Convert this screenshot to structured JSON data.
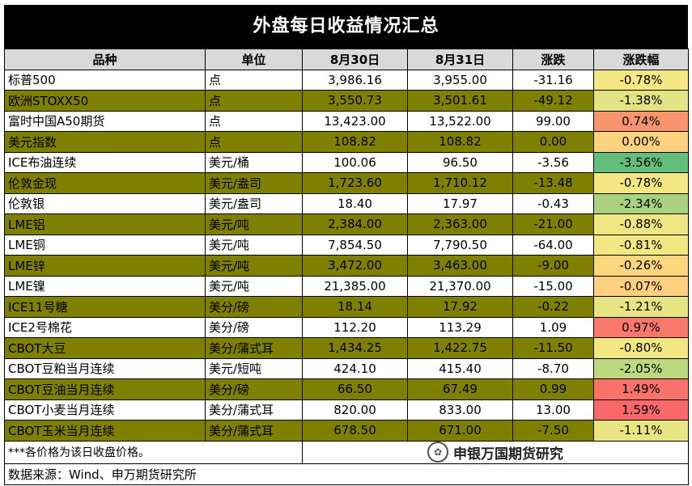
{
  "title": "外盘每日收益情况汇总",
  "headers": [
    "品种",
    "单位",
    "8月30日",
    "8月31日",
    "涨跌",
    "涨跌幅"
  ],
  "rows": [
    {
      "name": "标普500",
      "unit": "点",
      "d1": "3,986.16",
      "d2": "3,955.00",
      "chg": "-31.16",
      "pct": "-0.78%",
      "pct_color": "#f4e784",
      "band": "white"
    },
    {
      "name": "欧洲STOXX50",
      "unit": "点",
      "d1": "3,550.73",
      "d2": "3,501.61",
      "chg": "-49.12",
      "pct": "-1.38%",
      "pct_color": "#e2e384",
      "band": "olive"
    },
    {
      "name": "富时中国A50期货",
      "unit": "点",
      "d1": "13,423.00",
      "d2": "13,522.00",
      "chg": "99.00",
      "pct": "0.74%",
      "pct_color": "#f8956f",
      "band": "white"
    },
    {
      "name": "美元指数",
      "unit": "点",
      "d1": "108.82",
      "d2": "108.82",
      "chg": "0.00",
      "pct": "0.00%",
      "pct_color": "#fdd27f",
      "band": "olive"
    },
    {
      "name": "ICE布油连续",
      "unit": "美元/桶",
      "d1": "100.06",
      "d2": "96.50",
      "chg": "-3.56",
      "pct": "-3.56%",
      "pct_color": "#63be7b",
      "band": "white"
    },
    {
      "name": "伦敦金现",
      "unit": "美元/盎司",
      "d1": "1,723.60",
      "d2": "1,710.12",
      "chg": "-13.48",
      "pct": "-0.78%",
      "pct_color": "#f4e784",
      "band": "olive"
    },
    {
      "name": "伦敦银",
      "unit": "美元/盎司",
      "d1": "18.40",
      "d2": "17.97",
      "chg": "-0.43",
      "pct": "-2.34%",
      "pct_color": "#a8d27f",
      "band": "white"
    },
    {
      "name": "LME铝",
      "unit": "美元/吨",
      "d1": "2,384.00",
      "d2": "2,363.00",
      "chg": "-21.00",
      "pct": "-0.88%",
      "pct_color": "#f0e683",
      "band": "olive"
    },
    {
      "name": "LME铜",
      "unit": "美元/吨",
      "d1": "7,854.50",
      "d2": "7,790.50",
      "chg": "-64.00",
      "pct": "-0.81%",
      "pct_color": "#f3e783",
      "band": "white"
    },
    {
      "name": "LME锌",
      "unit": "美元/吨",
      "d1": "3,472.00",
      "d2": "3,463.00",
      "chg": "-9.00",
      "pct": "-0.26%",
      "pct_color": "#fdd780",
      "band": "olive"
    },
    {
      "name": "LME镍",
      "unit": "美元/吨",
      "d1": "21,385.00",
      "d2": "21,370.00",
      "chg": "-15.00",
      "pct": "-0.07%",
      "pct_color": "#fdd17f",
      "band": "white"
    },
    {
      "name": "ICE11号糖",
      "unit": "美分/磅",
      "d1": "18.14",
      "d2": "17.92",
      "chg": "-0.22",
      "pct": "-1.21%",
      "pct_color": "#e6e483",
      "band": "olive"
    },
    {
      "name": "ICE2号棉花",
      "unit": "美分/磅",
      "d1": "112.20",
      "d2": "113.29",
      "chg": "1.09",
      "pct": "0.97%",
      "pct_color": "#f8796c",
      "band": "white"
    },
    {
      "name": "CBOT大豆",
      "unit": "美分/蒲式耳",
      "d1": "1,434.25",
      "d2": "1,422.75",
      "chg": "-11.50",
      "pct": "-0.80%",
      "pct_color": "#f3e783",
      "band": "olive"
    },
    {
      "name": "CBOT豆粕当月连续",
      "unit": "美元/短吨",
      "d1": "424.10",
      "d2": "415.40",
      "chg": "-8.70",
      "pct": "-2.05%",
      "pct_color": "#bcd980",
      "band": "white"
    },
    {
      "name": "CBOT豆油当月连续",
      "unit": "美分/磅",
      "d1": "66.50",
      "d2": "67.49",
      "chg": "0.99",
      "pct": "1.49%",
      "pct_color": "#f8736b",
      "band": "olive"
    },
    {
      "name": "CBOT小麦当月连续",
      "unit": "美分/蒲式耳",
      "d1": "820.00",
      "d2": "833.00",
      "chg": "13.00",
      "pct": "1.59%",
      "pct_color": "#f8696b",
      "band": "white"
    },
    {
      "name": "CBOT玉米当月连续",
      "unit": "美分/蒲式耳",
      "d1": "678.50",
      "d2": "671.00",
      "chg": "-7.50",
      "pct": "-1.11%",
      "pct_color": "#e9e583",
      "band": "olive"
    }
  ],
  "note": "***各价格为该日收盘价格。",
  "watermark": "申银万国期货研究",
  "source": "数据来源：Wind、申万期货研究所"
}
